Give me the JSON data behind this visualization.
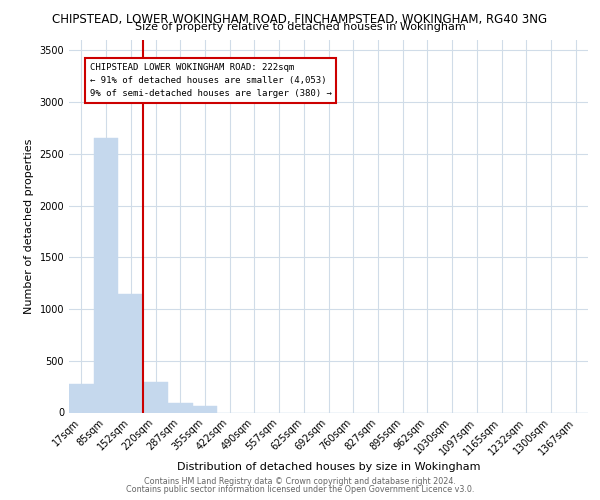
{
  "title_line1": "CHIPSTEAD, LOWER WOKINGHAM ROAD, FINCHAMPSTEAD, WOKINGHAM, RG40 3NG",
  "title_line2": "Size of property relative to detached houses in Wokingham",
  "xlabel": "Distribution of detached houses by size in Wokingham",
  "ylabel": "Number of detached properties",
  "footnote1": "Contains HM Land Registry data © Crown copyright and database right 2024.",
  "footnote2": "Contains public sector information licensed under the Open Government Licence v3.0.",
  "annotation_line1": "CHIPSTEAD LOWER WOKINGHAM ROAD: 222sqm",
  "annotation_line2": "← 91% of detached houses are smaller (4,053)",
  "annotation_line3": "9% of semi-detached houses are larger (380) →",
  "bar_color": "#c5d8ed",
  "highlight_color": "#cc0000",
  "categories": [
    "17sqm",
    "85sqm",
    "152sqm",
    "220sqm",
    "287sqm",
    "355sqm",
    "422sqm",
    "490sqm",
    "557sqm",
    "625sqm",
    "692sqm",
    "760sqm",
    "827sqm",
    "895sqm",
    "962sqm",
    "1030sqm",
    "1097sqm",
    "1165sqm",
    "1232sqm",
    "1300sqm",
    "1367sqm"
  ],
  "values": [
    280,
    2650,
    1150,
    290,
    95,
    60,
    0,
    0,
    0,
    0,
    0,
    0,
    0,
    0,
    0,
    0,
    0,
    0,
    0,
    0,
    0
  ],
  "ylim": [
    0,
    3600
  ],
  "yticks": [
    0,
    500,
    1000,
    1500,
    2000,
    2500,
    3000,
    3500
  ],
  "vline_x": 3,
  "background_color": "#ffffff",
  "grid_color": "#d0dce8",
  "title_fontsize": 8.5,
  "subtitle_fontsize": 8.0,
  "tick_fontsize": 7.0,
  "label_fontsize": 8.0,
  "footnote_fontsize": 5.8
}
